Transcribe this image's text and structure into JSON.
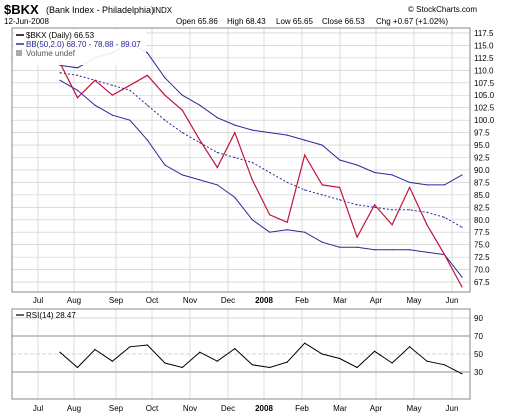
{
  "header": {
    "symbol": "$BKX",
    "name": "(Bank Index - Philadelphia)",
    "exchange": "INDX",
    "date": "12-Jun-2008",
    "credit": "© StockCharts.com",
    "quote": {
      "open": "Open 65.86",
      "high": "High 68.43",
      "low": "Low 65.65",
      "close": "Close 66.53",
      "chg": "Chg +0.67 (+1.02%)"
    }
  },
  "legend": {
    "price": "$BKX (Daily) 66.53",
    "bands": "BB(50,2.0) 68.70 - 78.88 - 89.07",
    "volume": "Volume undef"
  },
  "rsi_label": "RSI(14) 28.47",
  "colors": {
    "price": "#c0143c",
    "bands": "#2a2a9a",
    "rsi": "#000000",
    "grid": "#c8c8c8",
    "frame": "#888888"
  },
  "chart_data": [
    {
      "type": "line",
      "title": "$BKX (Bank Index - Philadelphia) INDX",
      "x_ticks": [
        "Jul",
        "Aug",
        "Sep",
        "Oct",
        "Nov",
        "Dec",
        "2008",
        "Feb",
        "Mar",
        "Apr",
        "May",
        "Jun"
      ],
      "y_ticks": [
        67.5,
        70.0,
        72.5,
        75.0,
        77.5,
        80.0,
        82.5,
        85.0,
        87.5,
        90.0,
        92.5,
        95.0,
        97.5,
        100.0,
        102.5,
        105.0,
        107.5,
        110.0,
        112.5,
        115.0,
        117.5
      ],
      "ylim": [
        65.5,
        118.5
      ],
      "grid": true,
      "legend_position": "top-left",
      "x": [
        "Jul",
        "Jul",
        "Aug",
        "Aug",
        "Sep",
        "Sep",
        "Oct",
        "Oct",
        "Nov",
        "Nov",
        "Dec",
        "Dec",
        "2008",
        "2008",
        "Feb",
        "Feb",
        "Mar",
        "Mar",
        "Apr",
        "Apr",
        "May",
        "May",
        "Jun",
        "Jun"
      ],
      "series": [
        {
          "name": "$BKX (Daily) 66.53",
          "values": [
            111.5,
            104.5,
            108.0,
            105.0,
            107.0,
            109.0,
            105.0,
            102.0,
            96.0,
            90.5,
            97.5,
            88.0,
            81.0,
            79.5,
            93.0,
            87.0,
            86.5,
            76.5,
            83.0,
            79.0,
            86.5,
            79.0,
            73.0,
            66.5
          ]
        },
        {
          "name": "BB upper",
          "values": [
            111.0,
            110.5,
            112.5,
            113.5,
            115.5,
            113.5,
            108.5,
            105.0,
            103.0,
            100.5,
            99.0,
            98.0,
            97.5,
            97.0,
            96.0,
            95.0,
            92.0,
            91.0,
            89.5,
            89.0,
            87.5,
            87.0,
            87.0,
            89.0
          ]
        },
        {
          "name": "BB middle",
          "values": [
            109.5,
            109.0,
            108.0,
            107.0,
            106.0,
            103.0,
            100.0,
            97.5,
            95.5,
            93.5,
            92.5,
            91.5,
            89.5,
            87.5,
            86.0,
            85.0,
            84.0,
            83.0,
            82.5,
            82.0,
            82.0,
            81.5,
            80.5,
            78.5
          ]
        },
        {
          "name": "BB lower",
          "values": [
            108.0,
            106.0,
            103.0,
            101.0,
            100.0,
            96.0,
            91.0,
            89.0,
            88.0,
            87.0,
            84.5,
            80.0,
            77.5,
            78.0,
            77.5,
            75.5,
            74.5,
            74.5,
            74.0,
            74.0,
            74.0,
            73.5,
            73.0,
            68.5
          ]
        }
      ]
    },
    {
      "type": "line",
      "title": "RSI(14) 28.47",
      "x_ticks": [
        "Jul",
        "Aug",
        "Sep",
        "Oct",
        "Nov",
        "Dec",
        "2008",
        "Feb",
        "Mar",
        "Apr",
        "May",
        "Jun"
      ],
      "y_ticks": [
        30,
        50,
        70,
        90
      ],
      "ylim": [
        0,
        100
      ],
      "grid": true,
      "series": [
        {
          "name": "RSI(14) 28.47",
          "values": [
            52,
            35,
            55,
            42,
            58,
            60,
            40,
            35,
            52,
            42,
            56,
            38,
            35,
            41,
            62,
            50,
            45,
            35,
            53,
            40,
            58,
            42,
            38,
            28
          ]
        }
      ]
    }
  ]
}
